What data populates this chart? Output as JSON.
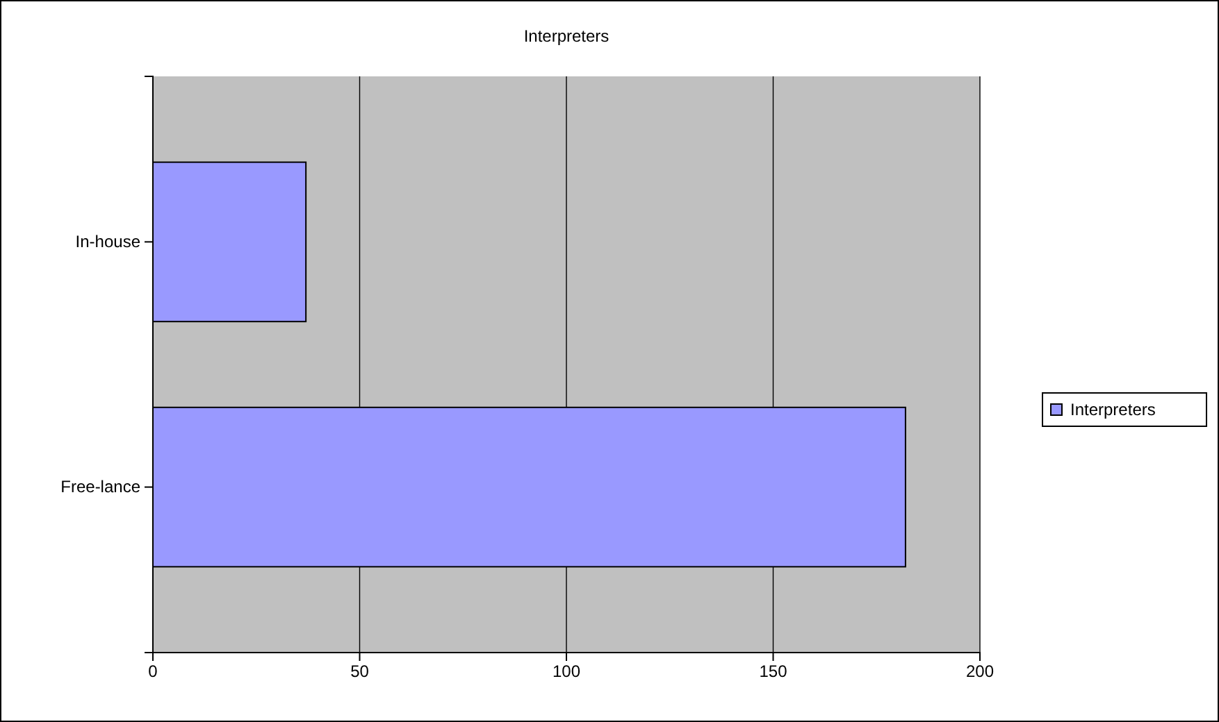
{
  "chart_data": {
    "type": "bar",
    "orientation": "horizontal",
    "title": "Interpreters",
    "categories": [
      "In-house",
      "Free-lance"
    ],
    "series": [
      {
        "name": "Interpreters",
        "color": "#9999ff",
        "values": [
          37,
          182
        ]
      }
    ],
    "xlim": [
      0,
      200
    ],
    "xticks": [
      0,
      50,
      100,
      150,
      200
    ],
    "grid": "x",
    "legend": "right"
  }
}
